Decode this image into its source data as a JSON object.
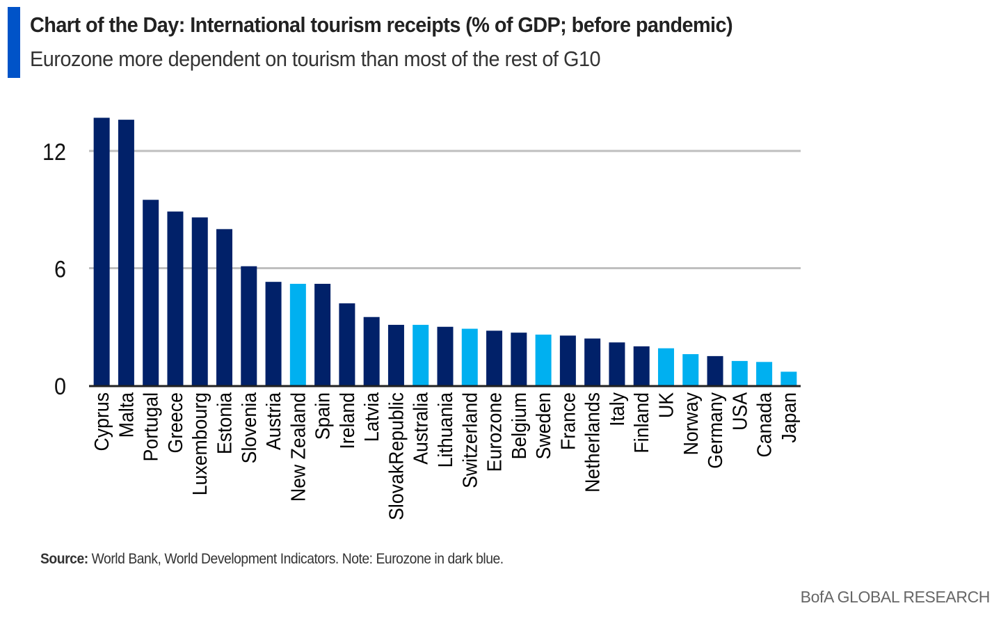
{
  "header": {
    "title": "Chart of the Day: International tourism receipts (% of GDP; before pandemic)",
    "subtitle": "Eurozone more dependent on tourism than most of the rest of G10"
  },
  "footer": {
    "source_label": "Source:",
    "source_text": " World Bank, World Development Indicators. Note: Eurozone in dark blue.",
    "brand": "BofA GLOBAL RESEARCH"
  },
  "colors": {
    "accent": "#0053C8",
    "eurozone": "#012169",
    "non_eurozone": "#00B0F0",
    "grid": "#BFBFBF",
    "axis": "#222222"
  },
  "chart_data": {
    "type": "bar",
    "title": "International tourism receipts (% of GDP; before pandemic)",
    "xlabel": "",
    "ylabel": "",
    "ylim": [
      0,
      14
    ],
    "yticks": [
      0,
      6,
      12
    ],
    "grid": true,
    "legend": "none",
    "categories": [
      "Cyprus",
      "Malta",
      "Portugal",
      "Greece",
      "Luxembourg",
      "Estonia",
      "Slovenia",
      "Austria",
      "New Zealand",
      "Spain",
      "Ireland",
      "Latvia",
      "SlovakRepublic",
      "Australia",
      "Lithuania",
      "Switzerland",
      "Eurozone",
      "Belgium",
      "Sweden",
      "France",
      "Netherlands",
      "Italy",
      "Finland",
      "UK",
      "Norway",
      "Germany",
      "USA",
      "Canada",
      "Japan"
    ],
    "values": [
      13.7,
      13.6,
      9.5,
      8.9,
      8.6,
      8.0,
      6.1,
      5.3,
      5.2,
      5.2,
      4.2,
      3.5,
      3.1,
      3.1,
      3.0,
      2.9,
      2.8,
      2.7,
      2.6,
      2.55,
      2.4,
      2.2,
      2.0,
      1.9,
      1.6,
      1.5,
      1.25,
      1.2,
      0.7
    ],
    "group": [
      "eurozone",
      "eurozone",
      "eurozone",
      "eurozone",
      "eurozone",
      "eurozone",
      "eurozone",
      "eurozone",
      "non_eurozone",
      "eurozone",
      "eurozone",
      "eurozone",
      "eurozone",
      "non_eurozone",
      "eurozone",
      "non_eurozone",
      "eurozone",
      "eurozone",
      "non_eurozone",
      "eurozone",
      "eurozone",
      "eurozone",
      "eurozone",
      "non_eurozone",
      "non_eurozone",
      "eurozone",
      "non_eurozone",
      "non_eurozone",
      "non_eurozone"
    ]
  }
}
